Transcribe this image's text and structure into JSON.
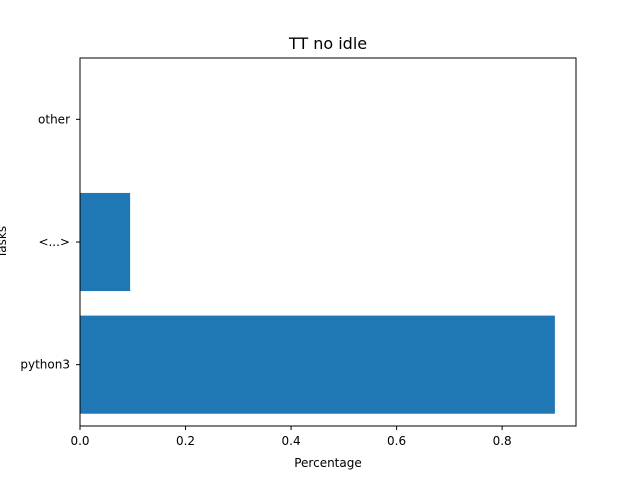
{
  "chart_data": {
    "type": "bar",
    "orientation": "horizontal",
    "title": "TT no idle",
    "xlabel": "Percentage",
    "ylabel": "Tasks",
    "categories": [
      "python3",
      "<...>",
      "other"
    ],
    "values": [
      0.9,
      0.095,
      0.0
    ],
    "xlim": [
      0.0,
      0.94
    ],
    "xticks": [
      0.0,
      0.2,
      0.4,
      0.6,
      0.8
    ],
    "xtick_labels": [
      "0.0",
      "0.2",
      "0.4",
      "0.6",
      "0.8"
    ],
    "bar_color": "#1f77b4",
    "grid": false,
    "legend": false
  }
}
